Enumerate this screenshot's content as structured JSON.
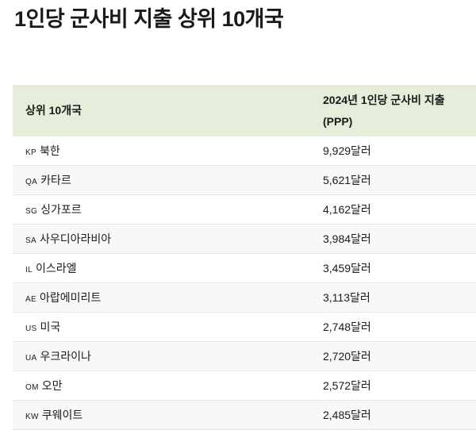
{
  "title": "1인당 군사비 지출 상위 10개국",
  "table": {
    "headers": [
      "상위 10개국",
      "2024년 1인당 군사비 지출 (PPP)"
    ],
    "header_bg": "#e4eedb",
    "rows": [
      {
        "code": "KP",
        "country": "북한",
        "value": "9,929달러"
      },
      {
        "code": "QA",
        "country": "카타르",
        "value": "5,621달러"
      },
      {
        "code": "SG",
        "country": "싱가포르",
        "value": "4,162달러"
      },
      {
        "code": "SA",
        "country": "사우디아라비아",
        "value": "3,984달러"
      },
      {
        "code": "IL",
        "country": "이스라엘",
        "value": "3,459달러"
      },
      {
        "code": "AE",
        "country": "아랍에미리트",
        "value": "3,113달러"
      },
      {
        "code": "US",
        "country": "미국",
        "value": "2,748달러"
      },
      {
        "code": "UA",
        "country": "우크라이나",
        "value": "2,720달러"
      },
      {
        "code": "OM",
        "country": "오만",
        "value": "2,572달러"
      },
      {
        "code": "KW",
        "country": "쿠웨이트",
        "value": "2,485달러"
      }
    ]
  }
}
